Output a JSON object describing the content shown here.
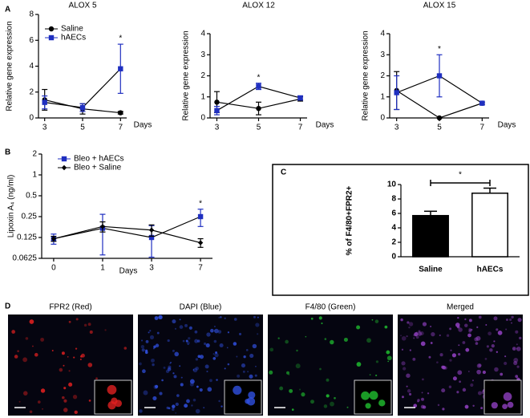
{
  "chart_data": [
    {
      "type": "line",
      "panel": "A",
      "title": "ALOX 5",
      "y_label": "Relative gene expression",
      "x_label": "Days",
      "categories": [
        "3",
        "5",
        "7"
      ],
      "ylim": [
        0,
        8
      ],
      "yticks": [
        0,
        2,
        4,
        6,
        8
      ],
      "legend": "upper left",
      "series": [
        {
          "name": "Saline",
          "color": "#000000",
          "marker": "circle",
          "values": [
            1.4,
            0.7,
            0.4
          ],
          "errors": [
            0.8,
            0.4,
            0.1
          ]
        },
        {
          "name": "hAECs",
          "color": "#1f2fc0",
          "marker": "square",
          "values": [
            1.2,
            0.8,
            3.8
          ],
          "errors": [
            0.5,
            0.3,
            1.9
          ]
        }
      ],
      "annotations": [
        {
          "text": "*",
          "category": "7"
        }
      ]
    },
    {
      "type": "line",
      "title": "ALOX 12",
      "y_label": "Relative gene expression",
      "x_label": "Days",
      "categories": [
        "3",
        "5",
        "7"
      ],
      "ylim": [
        0,
        4
      ],
      "yticks": [
        0,
        1,
        2,
        3,
        4
      ],
      "series": [
        {
          "name": "Saline",
          "color": "#000000",
          "marker": "circle",
          "values": [
            0.75,
            0.45,
            0.9
          ],
          "errors": [
            0.5,
            0.3,
            0.1
          ]
        },
        {
          "name": "hAECs",
          "color": "#1f2fc0",
          "marker": "square",
          "values": [
            0.35,
            1.5,
            0.95
          ],
          "errors": [
            0.2,
            0.15,
            0.1
          ]
        }
      ],
      "annotations": [
        {
          "text": "*",
          "category": "5"
        }
      ]
    },
    {
      "type": "line",
      "title": "ALOX 15",
      "y_label": "Relative gene expression",
      "x_label": "Days",
      "categories": [
        "3",
        "5",
        "7"
      ],
      "ylim": [
        0,
        4
      ],
      "yticks": [
        0,
        1,
        2,
        3,
        4
      ],
      "series": [
        {
          "name": "Saline",
          "color": "#000000",
          "marker": "circle",
          "values": [
            1.3,
            0,
            0.7
          ],
          "errors": [
            0.9,
            0,
            0.05
          ]
        },
        {
          "name": "hAECs",
          "color": "#1f2fc0",
          "marker": "square",
          "values": [
            1.2,
            2.0,
            0.7
          ],
          "errors": [
            0.8,
            1.0,
            0.05
          ]
        }
      ],
      "annotations": [
        {
          "text": "*",
          "category": "5"
        }
      ]
    },
    {
      "type": "line",
      "panel": "B",
      "y_label": "Lipoxin A₄ (ng/ml)",
      "x_label": "Days",
      "categories": [
        "0",
        "1",
        "3",
        "7"
      ],
      "ylim": [
        0.0625,
        2
      ],
      "yticks": [
        0.0625,
        0.125,
        0.25,
        0.5,
        1,
        2
      ],
      "log_base": 2,
      "legend": "upper left",
      "series": [
        {
          "name": "Bleo + hAECs",
          "color": "#1f2fc0",
          "marker": "square",
          "values": [
            0.12,
            0.17,
            0.125,
            0.25
          ],
          "errors": [
            0.02,
            0.1,
            0.06,
            0.07
          ]
        },
        {
          "name": "Bleo + Saline",
          "color": "#000000",
          "marker": "diamond",
          "values": [
            0.12,
            0.18,
            0.16,
            0.105
          ],
          "errors": [
            0.01,
            0.03,
            0.03,
            0.015
          ]
        }
      ],
      "annotations": [
        {
          "text": "*",
          "category": "7"
        }
      ]
    },
    {
      "type": "bar",
      "panel": "C",
      "y_label": "% of F4/80+FPR2+",
      "categories": [
        "Saline",
        "hAECs"
      ],
      "values": [
        5.7,
        8.8
      ],
      "errors": [
        0.6,
        0.7
      ],
      "colors": [
        "#000000",
        "#ffffff"
      ],
      "ylim": [
        0,
        10
      ],
      "yticks": [
        0,
        2,
        4,
        6,
        8,
        10
      ],
      "annotations": [
        {
          "text": "*",
          "bracket": [
            "Saline",
            "hAECs"
          ]
        }
      ]
    }
  ],
  "microscopy": {
    "panel": "D",
    "images": [
      {
        "label": "FPR2 (Red)",
        "color": "#e02020"
      },
      {
        "label": "DAPI (Blue)",
        "color": "#3050e0"
      },
      {
        "label": "F4/80 (Green)",
        "color": "#20c030"
      },
      {
        "label": "Merged",
        "color": "#9040c0"
      }
    ]
  }
}
